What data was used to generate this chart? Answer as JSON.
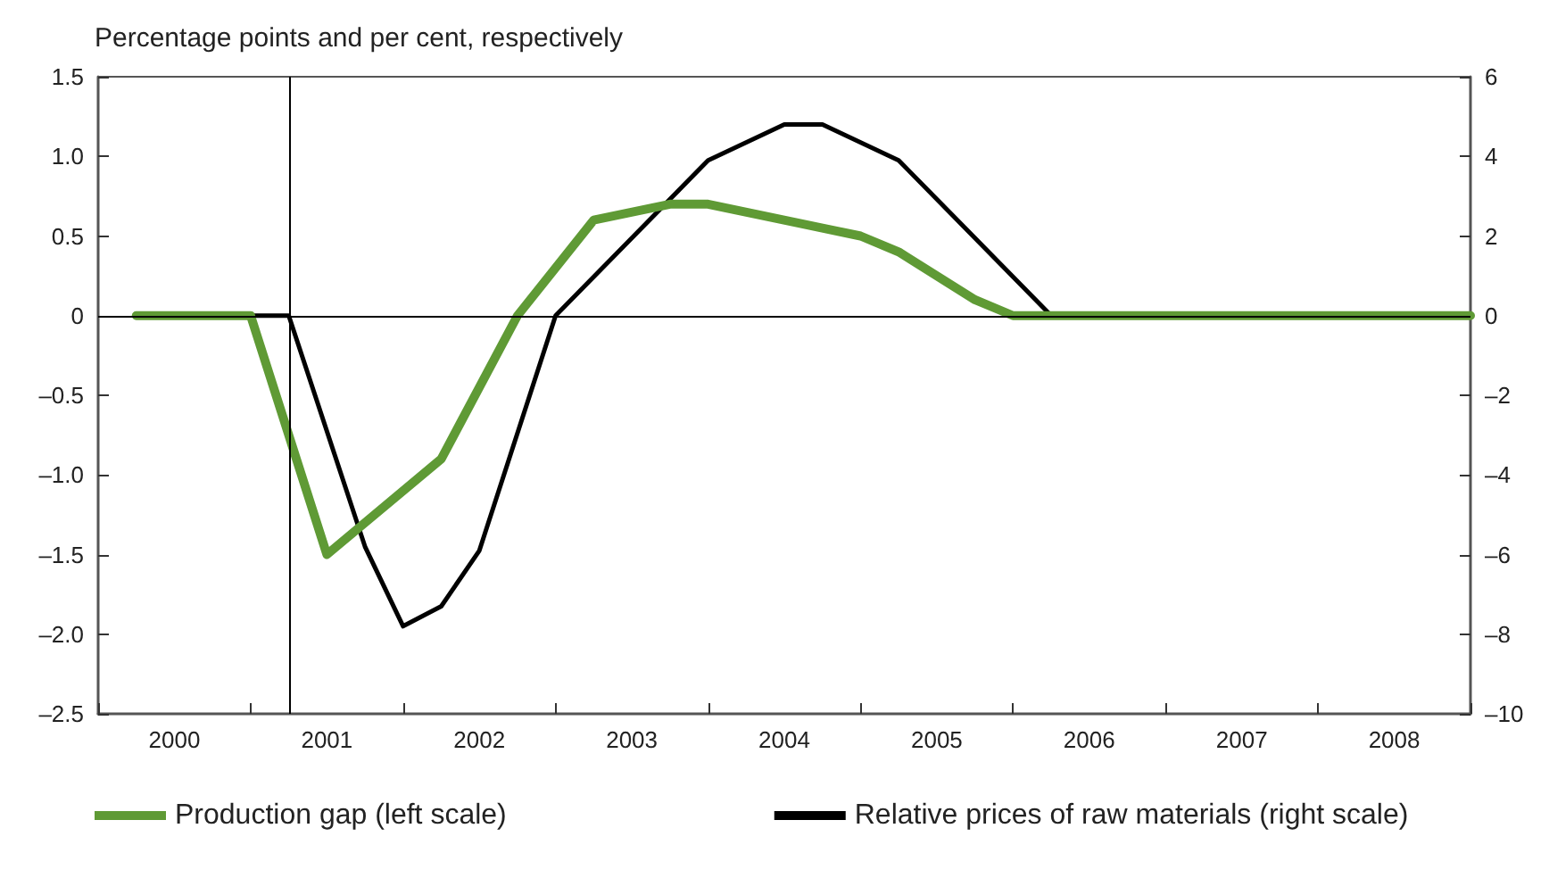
{
  "chart_data": {
    "type": "line",
    "ylabel": "Percentage points and per cent, respectively",
    "xlim": [
      2000,
      2009
    ],
    "xticks": [
      {
        "value": 2000,
        "label": null
      },
      {
        "value": 2000.5,
        "label": "2000"
      },
      {
        "value": 2001,
        "label": null
      },
      {
        "value": 2001.5,
        "label": "2001"
      },
      {
        "value": 2002,
        "label": null
      },
      {
        "value": 2002.5,
        "label": "2002"
      },
      {
        "value": 2003,
        "label": null
      },
      {
        "value": 2003.5,
        "label": "2003"
      },
      {
        "value": 2004,
        "label": null
      },
      {
        "value": 2004.5,
        "label": "2004"
      },
      {
        "value": 2005,
        "label": null
      },
      {
        "value": 2005.5,
        "label": "2005"
      },
      {
        "value": 2006,
        "label": null
      },
      {
        "value": 2006.5,
        "label": "2006"
      },
      {
        "value": 2007,
        "label": null
      },
      {
        "value": 2007.5,
        "label": "2007"
      },
      {
        "value": 2008,
        "label": null
      },
      {
        "value": 2008.5,
        "label": "2008"
      },
      {
        "value": 2009,
        "label": null
      }
    ],
    "ylim": [
      -2.5,
      1.5
    ],
    "yticks": [
      {
        "value": -2.5,
        "label": "–2.5"
      },
      {
        "value": -2,
        "label": "–2.0"
      },
      {
        "value": -1.5,
        "label": "–1.5"
      },
      {
        "value": -1,
        "label": "–1.0"
      },
      {
        "value": -0.5,
        "label": "–0.5"
      },
      0,
      {
        "value": 0.5,
        "label": "0.5"
      },
      {
        "value": 1,
        "label": "1.0"
      },
      {
        "value": 1.5,
        "label": "1.5"
      }
    ],
    "y2lim": [
      -10,
      6
    ],
    "y2ticks": [
      {
        "value": -10,
        "label": "–10"
      },
      {
        "value": -8,
        "label": "–8"
      },
      {
        "value": -6,
        "label": "–6"
      },
      {
        "value": -4,
        "label": "–4"
      },
      {
        "value": -2,
        "label": "–2"
      },
      0,
      2,
      4,
      6
    ],
    "series": [
      {
        "name": "Production gap (left scale)",
        "color": "#5f9a35",
        "x": [
          2000.25,
          2001,
          2001.5,
          2002.25,
          2002.75,
          2003.25,
          2003.75,
          2004,
          2004.75,
          2005,
          2005.25,
          2005.75,
          2006,
          2009
        ],
        "values": [
          0,
          0,
          -1.5,
          -0.9,
          0,
          0.6,
          0.7,
          0.7,
          0.55,
          0.5,
          0.4,
          0.1,
          0,
          0
        ]
      },
      {
        "name": "Relative prices of raw materials (right scale)",
        "color": "#000000",
        "axis": "y2",
        "x": [
          2001,
          2001.25,
          2001.75,
          2002,
          2002.25,
          2002.5,
          2003,
          2004,
          2004.5,
          2004.75,
          2005.25,
          2006.25
        ],
        "values": [
          0,
          0,
          -5.8,
          -7.8,
          -7.3,
          -5.9,
          0,
          3.9,
          4.8,
          4.8,
          3.9,
          0
        ]
      }
    ],
    "ref_lines": [
      {
        "axis": "x",
        "value": 2001.25
      },
      {
        "axis": "y",
        "value": 0
      }
    ],
    "grid": false,
    "legend": "bottom",
    "marker": "none",
    "line_style": "solid"
  }
}
